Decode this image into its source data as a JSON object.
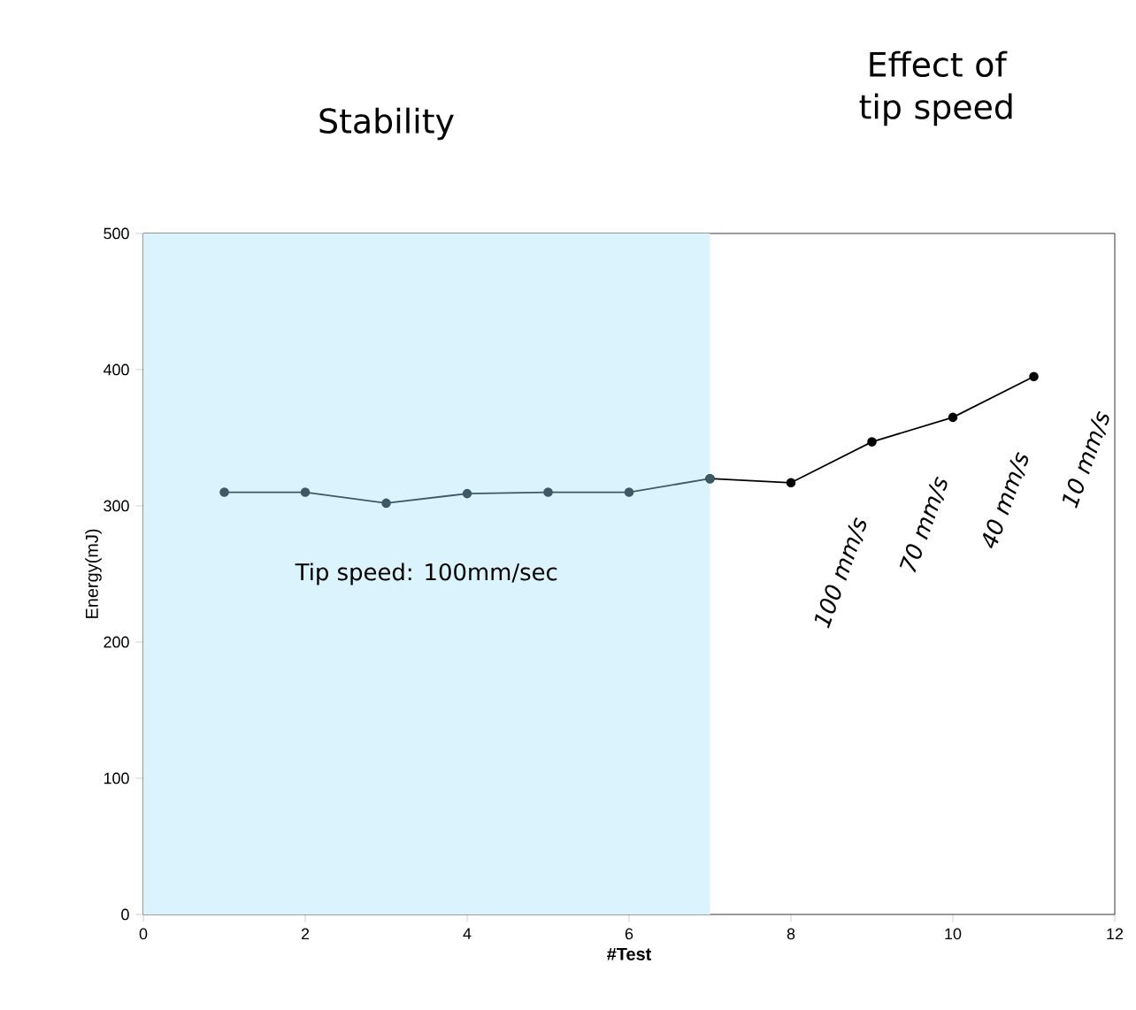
{
  "chart_data": {
    "type": "line",
    "xlabel": "#Test",
    "ylabel": "Energy(mJ)",
    "xlim": [
      0,
      12
    ],
    "xticks": [
      0,
      2,
      4,
      6,
      8,
      10,
      12
    ],
    "ylim": [
      0,
      500
    ],
    "yticks": [
      0,
      100,
      200,
      300,
      400,
      500
    ],
    "marker": "circle",
    "line_style": "solid",
    "series": [
      {
        "color": "#3d5966",
        "x": [
          1,
          2,
          3,
          4,
          5,
          6,
          7
        ],
        "values": [
          310,
          310,
          302,
          309,
          310,
          310,
          320
        ]
      },
      {
        "color": "#000000",
        "x": [
          7,
          8,
          9,
          10,
          11
        ],
        "values": [
          320,
          317,
          347,
          365,
          395
        ]
      }
    ],
    "bands": [
      {
        "axis": "x",
        "from": 0,
        "to": 7,
        "color": "#dbf3fd"
      }
    ],
    "annotations": [
      "Stability",
      "Effect of tip speed",
      "Tip speed: 100mm/sec",
      {
        "text": "100 mm/s",
        "x": 8,
        "y": 317
      },
      {
        "text": "70 mm/s",
        "x": 9,
        "y": 347
      },
      {
        "text": "40 mm/s",
        "x": 10,
        "y": 365
      },
      {
        "text": "10 mm/s",
        "x": 11,
        "y": 395
      }
    ]
  }
}
